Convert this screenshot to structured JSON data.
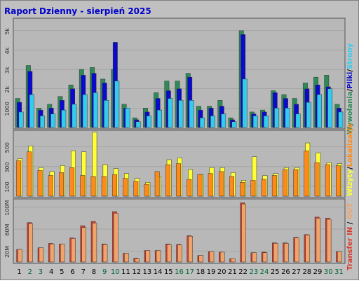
{
  "colors": {
    "background": "#c0c0c0",
    "plot_bg": "#b8b8b8",
    "title": "#0000cc",
    "label_dark": "#000000",
    "label_weekend": "#006633",
    "wywolania": "#2e8b57",
    "pliki": "#0a0acc",
    "strony": "#33ccee",
    "wizyty": "#ffff33",
    "lokalizacje": "#ff8a1a",
    "transfer_in": "#d93a2b",
    "transfer_out": "#f0a36a"
  },
  "chart_data": [
    {
      "type": "bar",
      "title": "Raport Dzienny -  sierpień 2025",
      "legend": [
        "Wywołania",
        "/",
        "Pliki",
        "/",
        "Strony"
      ],
      "y_ticks": [
        "1000",
        "2k",
        "3k",
        "4k",
        "5k"
      ],
      "ylim": [
        0,
        5500
      ],
      "categories": [
        "1",
        "2",
        "3",
        "4",
        "5",
        "6",
        "7",
        "8",
        "9",
        "10",
        "11",
        "12",
        "13",
        "14",
        "15",
        "16",
        "17",
        "18",
        "19",
        "20",
        "21",
        "22",
        "23",
        "24",
        "25",
        "26",
        "27",
        "28",
        "29",
        "30",
        "31"
      ],
      "weekend_days": [
        "2",
        "3",
        "9",
        "10",
        "16",
        "17",
        "23",
        "24",
        "30",
        "31"
      ],
      "series": [
        {
          "name": "Wywołania",
          "values": [
            1500,
            3200,
            1000,
            1200,
            1600,
            2200,
            3000,
            3100,
            2500,
            3000,
            1200,
            500,
            1000,
            1800,
            2400,
            2400,
            2800,
            1100,
            1100,
            1400,
            500,
            5000,
            800,
            900,
            1900,
            1700,
            1500,
            2300,
            2600,
            2700,
            1200
          ]
        },
        {
          "name": "Pliki",
          "values": [
            1300,
            2900,
            900,
            1000,
            1400,
            2000,
            2700,
            2800,
            2300,
            4400,
            1000,
            400,
            800,
            1500,
            1900,
            2000,
            2600,
            900,
            1000,
            1100,
            400,
            4800,
            700,
            800,
            1800,
            1500,
            1200,
            2000,
            2200,
            2100,
            1000
          ]
        },
        {
          "name": "Strony",
          "values": [
            800,
            1700,
            600,
            700,
            900,
            1200,
            1700,
            1800,
            1400,
            2400,
            1000,
            300,
            600,
            900,
            1500,
            1400,
            1400,
            500,
            600,
            700,
            300,
            2500,
            600,
            600,
            1000,
            1000,
            700,
            1300,
            1700,
            2000,
            800
          ]
        }
      ]
    },
    {
      "type": "bar",
      "legend": [
        "Wizyty",
        "/",
        "Lokalizacje"
      ],
      "y_ticks": [
        "100",
        "300",
        "500"
      ],
      "ylim": [
        0,
        640
      ],
      "categories": [
        "1",
        "2",
        "3",
        "4",
        "5",
        "6",
        "7",
        "8",
        "9",
        "10",
        "11",
        "12",
        "13",
        "14",
        "15",
        "16",
        "17",
        "18",
        "19",
        "20",
        "21",
        "22",
        "23",
        "24",
        "25",
        "26",
        "27",
        "28",
        "29",
        "30",
        "31"
      ],
      "series": [
        {
          "name": "Wizyty",
          "values": [
            380,
            510,
            290,
            250,
            310,
            460,
            450,
            650,
            320,
            280,
            230,
            180,
            140,
            200,
            370,
            390,
            270,
            220,
            290,
            290,
            240,
            160,
            400,
            210,
            230,
            290,
            290,
            540,
            440,
            340,
            330
          ]
        },
        {
          "name": "Lokalizacje",
          "values": [
            360,
            450,
            260,
            210,
            240,
            290,
            210,
            200,
            200,
            220,
            180,
            150,
            120,
            250,
            320,
            330,
            170,
            220,
            230,
            250,
            200,
            140,
            160,
            170,
            210,
            270,
            270,
            460,
            340,
            320,
            310
          ]
        }
      ]
    },
    {
      "type": "bar",
      "legend": [
        "Transfer",
        "IN",
        "/",
        "OUT"
      ],
      "y_ticks": [
        "20M",
        "60M",
        "100M"
      ],
      "ylim": [
        0,
        110
      ],
      "categories": [
        "1",
        "2",
        "3",
        "4",
        "5",
        "6",
        "7",
        "8",
        "9",
        "10",
        "11",
        "12",
        "13",
        "14",
        "15",
        "16",
        "17",
        "18",
        "19",
        "20",
        "21",
        "22",
        "23",
        "24",
        "25",
        "26",
        "27",
        "28",
        "29",
        "30",
        "31"
      ],
      "series": [
        {
          "name": "IN",
          "values": [
            23,
            72,
            26,
            34,
            33,
            44,
            66,
            74,
            33,
            92,
            16,
            7,
            21,
            21,
            33,
            32,
            48,
            12,
            19,
            18,
            6,
            108,
            17,
            18,
            35,
            35,
            45,
            50,
            82,
            80,
            19
          ]
        },
        {
          "name": "OUT",
          "values": [
            23,
            70,
            26,
            33,
            33,
            43,
            63,
            71,
            32,
            89,
            16,
            6,
            21,
            21,
            32,
            31,
            47,
            12,
            19,
            18,
            6,
            106,
            17,
            17,
            34,
            34,
            44,
            49,
            80,
            78,
            19
          ]
        }
      ]
    }
  ]
}
